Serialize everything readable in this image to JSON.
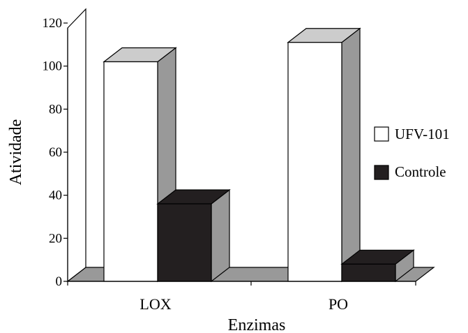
{
  "chart_data": {
    "type": "bar",
    "style": "3d-clustered",
    "title": "",
    "xlabel": "Enzimas",
    "ylabel": "Atividade",
    "categories": [
      "LOX",
      "PO"
    ],
    "series": [
      {
        "name": "UFV-101",
        "values": [
          102,
          111
        ],
        "color": "#ffffff"
      },
      {
        "name": "Controle",
        "values": [
          36,
          8
        ],
        "color": "#231f20"
      }
    ],
    "ylim": [
      0,
      120
    ],
    "yticks": [
      0,
      20,
      40,
      60,
      80,
      100,
      120
    ],
    "legend_position": "right",
    "grid": false,
    "colors": {
      "wall": "#ffffff",
      "floor": "#999999",
      "bar_side": "#999999",
      "bar_top": "#cccccc",
      "dark_top": "#231f20"
    }
  }
}
